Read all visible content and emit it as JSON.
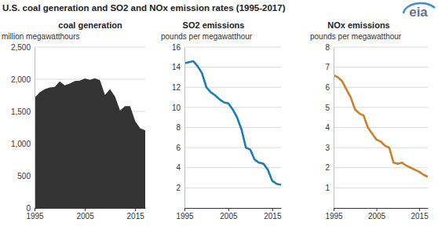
{
  "title": "U.S. coal generation and SO2 and NOx emission rates (1995-2017)",
  "logo": "eia",
  "chart_data": [
    {
      "type": "area",
      "title": "coal generation",
      "y_label": "million megawatthours",
      "x": [
        1995,
        1996,
        1997,
        1998,
        1999,
        2000,
        2001,
        2002,
        2003,
        2004,
        2005,
        2006,
        2007,
        2008,
        2009,
        2010,
        2011,
        2012,
        2013,
        2014,
        2015,
        2016,
        2017
      ],
      "series": [
        {
          "color": "#333333",
          "values": [
            1709,
            1796,
            1845,
            1873,
            1881,
            1966,
            1904,
            1933,
            1974,
            1978,
            2013,
            1991,
            2016,
            1986,
            1756,
            1847,
            1733,
            1514,
            1581,
            1582,
            1352,
            1239,
            1206
          ]
        }
      ],
      "xlim": [
        1995,
        2017
      ],
      "xticks": [
        1995,
        2005,
        2015
      ],
      "ylim": [
        0,
        2500
      ],
      "yticks": [
        0,
        500,
        {
          "value": 1000,
          "label": "1,000"
        },
        {
          "value": 1500,
          "label": "1,500"
        },
        {
          "value": 2000,
          "label": "2,000"
        },
        {
          "value": 2500,
          "label": "2,500"
        }
      ],
      "grid": true
    },
    {
      "type": "line",
      "title": "SO2 emissions",
      "y_label": "pounds per megawatthour",
      "x": [
        1995,
        1996,
        1997,
        1998,
        1999,
        2000,
        2001,
        2002,
        2003,
        2004,
        2005,
        2006,
        2007,
        2008,
        2009,
        2010,
        2011,
        2012,
        2013,
        2014,
        2015,
        2016,
        2017
      ],
      "series": [
        {
          "color": "#1b7db3",
          "values": [
            14.4,
            14.5,
            14.6,
            14.1,
            13.4,
            12.0,
            11.5,
            11.2,
            10.8,
            10.5,
            10.4,
            9.8,
            9.0,
            7.8,
            6.0,
            5.8,
            4.8,
            4.5,
            4.4,
            3.8,
            2.7,
            2.4,
            2.3
          ]
        }
      ],
      "xlim": [
        1995,
        2017
      ],
      "xticks": [
        1995,
        2005,
        2015
      ],
      "ylim": [
        0,
        16
      ],
      "yticks": [
        2,
        4,
        6,
        8,
        10,
        12,
        14,
        16
      ],
      "grid": true
    },
    {
      "type": "line",
      "title": "NOx emissions",
      "y_label": "pounds per megawatthour",
      "x": [
        1995,
        1996,
        1997,
        1998,
        1999,
        2000,
        2001,
        2002,
        2003,
        2004,
        2005,
        2006,
        2007,
        2008,
        2009,
        2010,
        2011,
        2012,
        2013,
        2014,
        2015,
        2016,
        2017
      ],
      "series": [
        {
          "color": "#c8822c",
          "values": [
            6.6,
            6.5,
            6.3,
            5.9,
            5.5,
            4.9,
            4.7,
            4.6,
            4.0,
            3.7,
            3.4,
            3.3,
            3.1,
            3.0,
            2.25,
            2.2,
            2.25,
            2.1,
            2.0,
            1.9,
            1.8,
            1.65,
            1.55
          ]
        }
      ],
      "xlim": [
        1995,
        2017
      ],
      "xticks": [
        1995,
        2005,
        2015
      ],
      "ylim": [
        0,
        8
      ],
      "yticks": [
        1,
        2,
        3,
        4,
        5,
        6,
        7,
        8
      ],
      "grid": true
    }
  ]
}
